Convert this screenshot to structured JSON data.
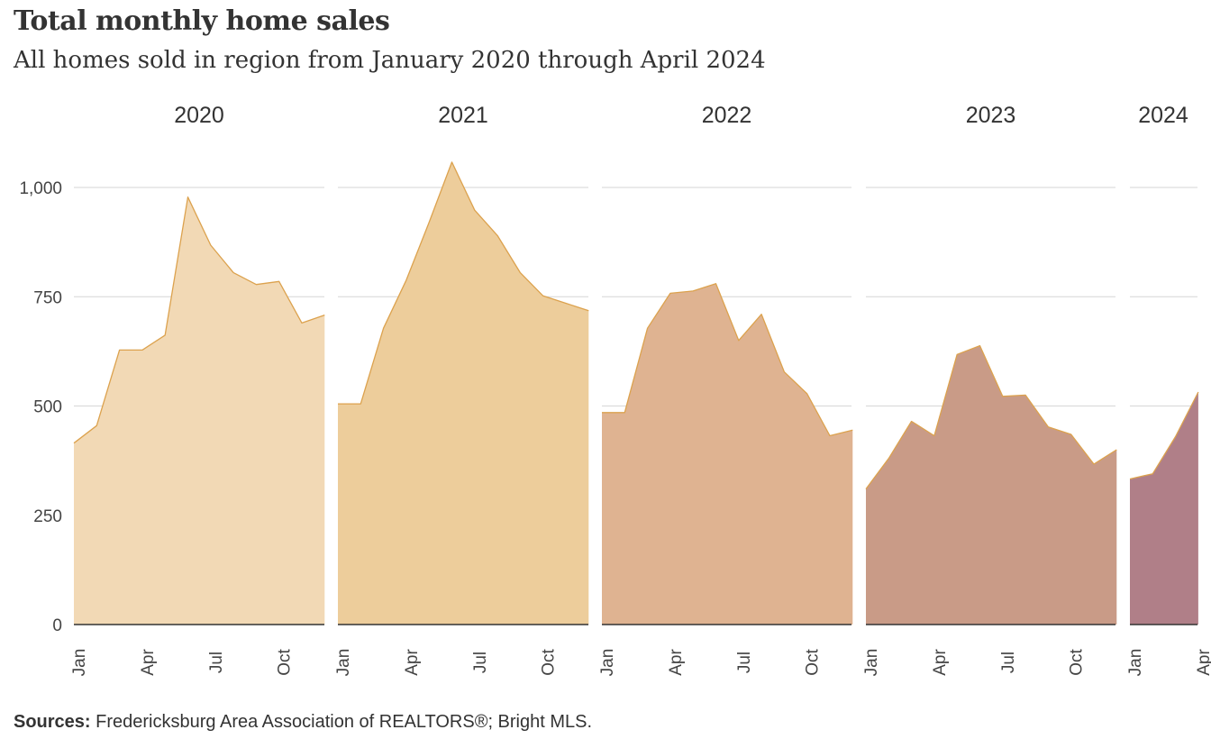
{
  "header": {
    "title": "Total monthly home sales",
    "subtitle": "All homes sold in region from January 2020 through April 2024"
  },
  "footer": {
    "sources_label": "Sources:",
    "sources_text": " Fredericksburg  Area Association of REALTORS®;  Bright MLS."
  },
  "chart_data": {
    "type": "area",
    "title": "Total monthly home sales",
    "subtitle": "All homes sold in region from January 2020 through April 2024",
    "ylim": [
      0,
      1100
    ],
    "y_ticks": [
      0,
      250,
      500,
      750,
      1000
    ],
    "y_tick_labels": [
      "0",
      "250",
      "500",
      "750",
      "1,000"
    ],
    "x_tick_labels": [
      "Jan",
      "Apr",
      "Jul",
      "Oct"
    ],
    "grid": true,
    "panels": [
      {
        "name": "2020",
        "color": "#f2d9b5",
        "months": [
          "Jan",
          "Feb",
          "Mar",
          "Apr",
          "May",
          "Jun",
          "Jul",
          "Aug",
          "Sep",
          "Oct",
          "Nov",
          "Dec"
        ],
        "values": [
          415,
          455,
          628,
          628,
          662,
          978,
          868,
          805,
          778,
          785,
          690,
          708
        ]
      },
      {
        "name": "2021",
        "color": "#edcd9b",
        "months": [
          "Jan",
          "Feb",
          "Mar",
          "Apr",
          "May",
          "Jun",
          "Jul",
          "Aug",
          "Sep",
          "Oct",
          "Nov",
          "Dec"
        ],
        "values": [
          505,
          505,
          678,
          788,
          920,
          1058,
          948,
          890,
          805,
          752,
          735,
          718
        ]
      },
      {
        "name": "2022",
        "color": "#dfb391",
        "months": [
          "Jan",
          "Feb",
          "Mar",
          "Apr",
          "May",
          "Jun",
          "Jul",
          "Aug",
          "Sep",
          "Oct",
          "Nov",
          "Dec"
        ],
        "values": [
          485,
          485,
          678,
          758,
          763,
          780,
          650,
          710,
          578,
          528,
          432,
          445
        ]
      },
      {
        "name": "2023",
        "color": "#c99b87",
        "months": [
          "Jan",
          "Feb",
          "Mar",
          "Apr",
          "May",
          "Jun",
          "Jul",
          "Aug",
          "Sep",
          "Oct",
          "Nov",
          "Dec"
        ],
        "values": [
          310,
          380,
          465,
          432,
          618,
          638,
          522,
          525,
          452,
          435,
          367,
          400
        ]
      },
      {
        "name": "2024",
        "color": "#b07f88",
        "months": [
          "Jan",
          "Feb",
          "Mar",
          "Apr"
        ],
        "values": [
          333,
          345,
          430,
          532
        ]
      }
    ],
    "line_color": "#dca24e",
    "grid_color": "#d6d6d6",
    "baseline_color": "#333333"
  }
}
